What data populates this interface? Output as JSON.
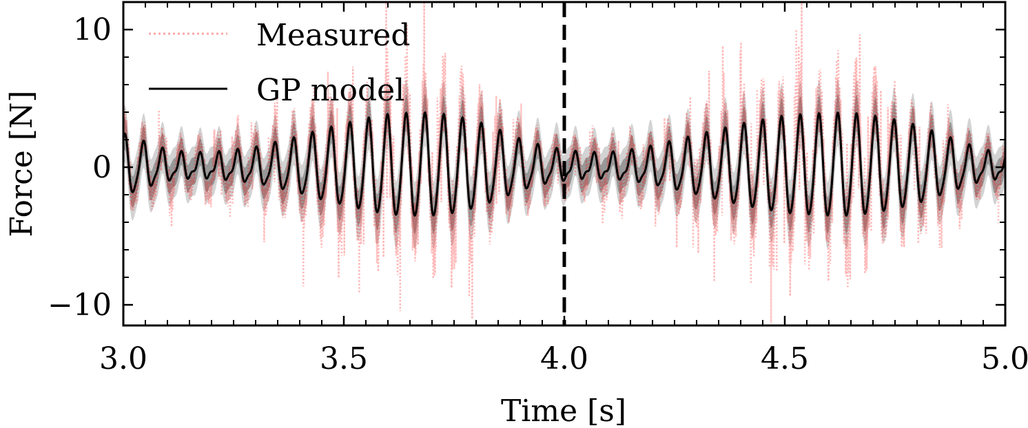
{
  "chart_data": {
    "type": "line",
    "title": "",
    "xlabel": "Time [s]",
    "ylabel": "Force [N]",
    "xlim": [
      3.0,
      5.0
    ],
    "ylim": [
      -11.5,
      12.0
    ],
    "xticks": [
      3.0,
      3.5,
      4.0,
      4.5,
      5.0
    ],
    "xtick_labels": [
      "3.0",
      "3.5",
      "4.0",
      "4.5",
      "5.0"
    ],
    "yticks": [
      -10,
      0,
      10
    ],
    "ytick_labels": [
      "−10",
      "0",
      "10"
    ],
    "vline_x": 4.0,
    "grid": false,
    "legend_position": "top-left",
    "colors": {
      "measured": "#ff0000",
      "model": "#000000",
      "band": "#808080",
      "vline": "#000000"
    },
    "series": [
      {
        "name": "Measured",
        "style": "dotted",
        "x": [
          3.0,
          3.05,
          3.1,
          3.15,
          3.2,
          3.25,
          3.3,
          3.35,
          3.4,
          3.45,
          3.5,
          3.55,
          3.6,
          3.65,
          3.7,
          3.75,
          3.8,
          3.85,
          3.9,
          3.95,
          4.0,
          4.05,
          4.1,
          4.15,
          4.2,
          4.25,
          4.3,
          4.35,
          4.4,
          4.45,
          4.5,
          4.55,
          4.6,
          4.65,
          4.7,
          4.75,
          4.8,
          4.85,
          4.9,
          4.95,
          5.0
        ],
        "amplitude": [
          5.5,
          4.2,
          3.2,
          3.0,
          3.2,
          3.5,
          4.0,
          4.5,
          6.0,
          7.0,
          7.5,
          8.5,
          9.5,
          10.0,
          10.5,
          9.5,
          8.0,
          6.0,
          4.5,
          3.5,
          3.0,
          3.0,
          3.0,
          3.5,
          4.0,
          4.5,
          5.5,
          6.5,
          7.5,
          8.5,
          9.0,
          9.5,
          10.5,
          10.0,
          9.0,
          8.0,
          6.5,
          5.0,
          4.0,
          3.0,
          3.0
        ]
      },
      {
        "name": "GP model",
        "style": "solid",
        "x": [
          3.0,
          3.05,
          3.1,
          3.15,
          3.2,
          3.25,
          3.3,
          3.35,
          3.4,
          3.45,
          3.5,
          3.55,
          3.6,
          3.65,
          3.7,
          3.75,
          3.8,
          3.85,
          3.9,
          3.95,
          4.0,
          4.05,
          4.1,
          4.15,
          4.2,
          4.25,
          4.3,
          4.35,
          4.4,
          4.45,
          4.5,
          4.55,
          4.6,
          4.65,
          4.7,
          4.75,
          4.8,
          4.85,
          4.9,
          4.95,
          5.0
        ],
        "amplitude": [
          2.2,
          1.6,
          1.0,
          0.8,
          0.8,
          1.0,
          1.2,
          1.6,
          2.0,
          2.5,
          2.9,
          3.3,
          3.6,
          3.7,
          3.7,
          3.5,
          3.1,
          2.5,
          1.8,
          1.3,
          1.0,
          0.8,
          0.8,
          1.0,
          1.3,
          1.7,
          2.1,
          2.5,
          2.9,
          3.2,
          3.5,
          3.6,
          3.7,
          3.7,
          3.5,
          3.2,
          2.8,
          2.2,
          1.6,
          1.0,
          0.8
        ]
      }
    ],
    "oscillation_frequency_hz": 23.5
  },
  "legend": {
    "items": [
      {
        "label": "Measured"
      },
      {
        "label": "GP model"
      }
    ]
  }
}
